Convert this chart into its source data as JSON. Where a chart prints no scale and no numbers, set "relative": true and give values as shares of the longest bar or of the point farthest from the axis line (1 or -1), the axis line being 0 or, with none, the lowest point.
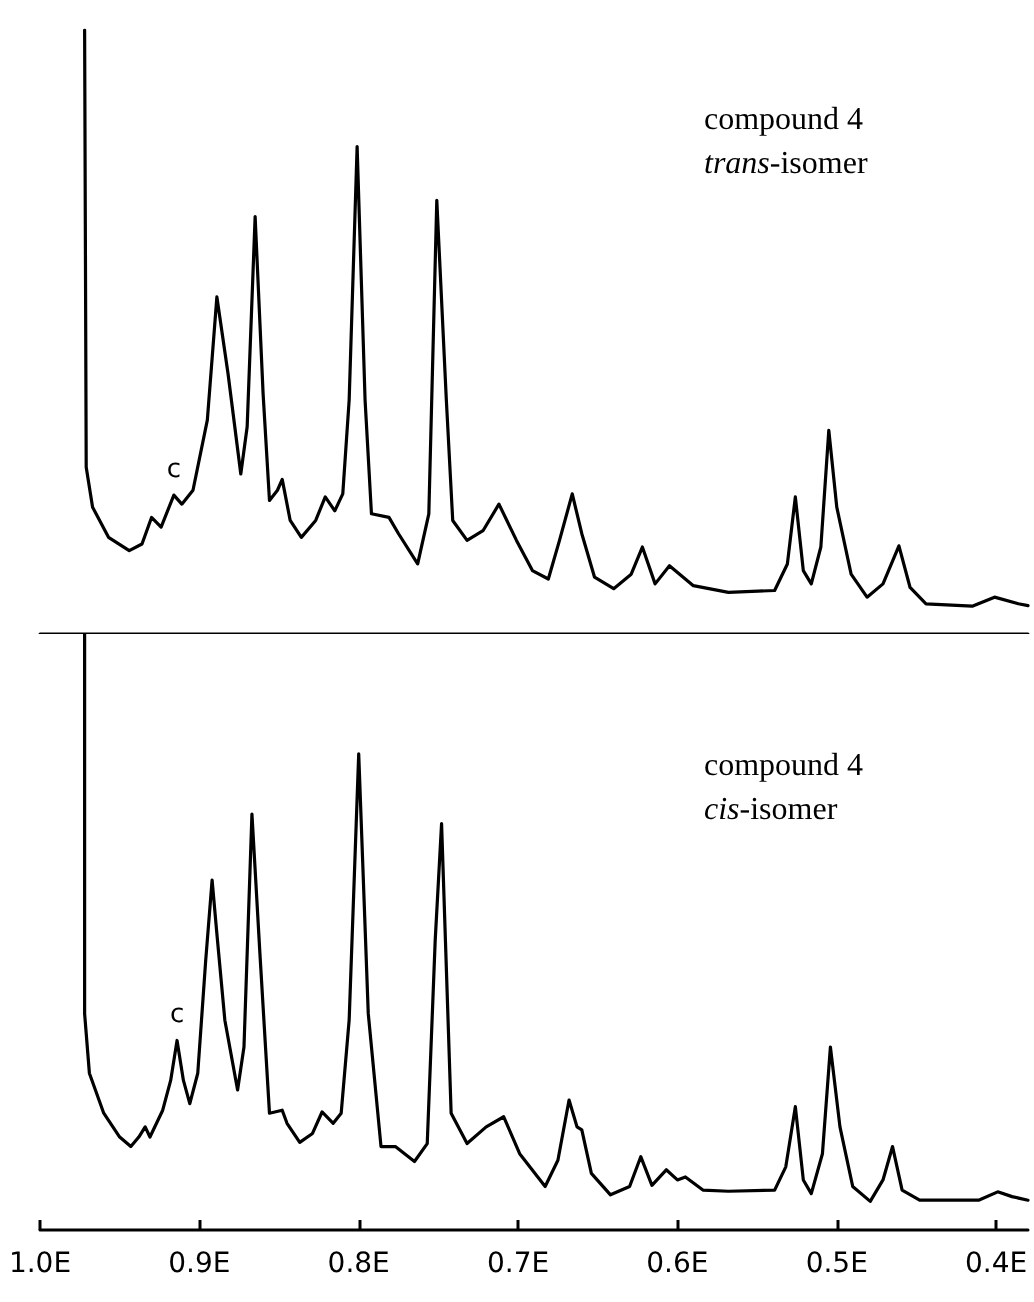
{
  "chart_data": [
    {
      "type": "line",
      "relative": true,
      "xlim": [
        1.0,
        0.38
      ],
      "xticks": [
        {
          "value": 1.0,
          "label": null
        },
        {
          "value": 0.9,
          "label": null
        },
        {
          "value": 0.8,
          "label": null
        },
        {
          "value": 0.7,
          "label": null
        },
        {
          "value": 0.6,
          "label": null
        },
        {
          "value": 0.5,
          "label": null
        },
        {
          "value": 0.4,
          "label": null
        }
      ],
      "tick_labels": false,
      "grid": false,
      "marker": "none",
      "line_style": "solid",
      "annotations": [
        "compound 4",
        "trans-isomer",
        {
          "text": "c",
          "x": 0.916,
          "y": 0.23
        }
      ],
      "series": [
        {
          "color": "#000000",
          "x": [
            0.972,
            0.971,
            0.967,
            0.957,
            0.944,
            0.936,
            0.93,
            0.924,
            0.916,
            0.911,
            0.904,
            0.895,
            0.889,
            0.882,
            0.874,
            0.87,
            0.865,
            0.86,
            0.856,
            0.851,
            0.848,
            0.843,
            0.836,
            0.827,
            0.821,
            0.815,
            0.81,
            0.806,
            0.801,
            0.796,
            0.792,
            0.781,
            0.775,
            0.763,
            0.756,
            0.751,
            0.745,
            0.741,
            0.732,
            0.722,
            0.712,
            0.701,
            0.691,
            0.681,
            0.674,
            0.666,
            0.66,
            0.652,
            0.64,
            0.629,
            0.622,
            0.614,
            0.605,
            0.59,
            0.568,
            0.539,
            0.531,
            0.526,
            0.521,
            0.516,
            0.51,
            0.505,
            0.5,
            0.491,
            0.481,
            0.471,
            0.461,
            0.454,
            0.444,
            0.415,
            0.401,
            0.386,
            0.38
          ],
          "values": [
            1.0,
            0.276,
            0.21,
            0.16,
            0.138,
            0.149,
            0.193,
            0.177,
            0.23,
            0.215,
            0.238,
            0.354,
            0.558,
            0.431,
            0.265,
            0.343,
            0.691,
            0.398,
            0.221,
            0.238,
            0.256,
            0.188,
            0.16,
            0.188,
            0.227,
            0.204,
            0.232,
            0.387,
            0.807,
            0.387,
            0.199,
            0.193,
            0.166,
            0.116,
            0.199,
            0.718,
            0.387,
            0.188,
            0.155,
            0.171,
            0.215,
            0.155,
            0.105,
            0.091,
            0.155,
            0.232,
            0.166,
            0.094,
            0.075,
            0.099,
            0.144,
            0.083,
            0.113,
            0.08,
            0.069,
            0.072,
            0.116,
            0.227,
            0.105,
            0.083,
            0.144,
            0.337,
            0.21,
            0.099,
            0.061,
            0.083,
            0.146,
            0.077,
            0.05,
            0.046,
            0.061,
            0.05,
            0.047
          ]
        }
      ]
    },
    {
      "type": "line",
      "relative": true,
      "xlim": [
        1.0,
        0.38
      ],
      "xticks": [
        {
          "value": 1.0,
          "label": "1.0E"
        },
        {
          "value": 0.9,
          "label": "0.9E"
        },
        {
          "value": 0.8,
          "label": "0.8E"
        },
        {
          "value": 0.7,
          "label": "0.7E"
        },
        {
          "value": 0.6,
          "label": "0.6E"
        },
        {
          "value": 0.5,
          "label": "0.5E"
        },
        {
          "value": 0.4,
          "label": "0.4E"
        }
      ],
      "tick_labels": "x",
      "grid": false,
      "marker": "none",
      "line_style": "solid",
      "annotations": [
        "compound 4",
        "cis-isomer",
        {
          "text": "c",
          "x": 0.914,
          "y": 0.318
        }
      ],
      "series": [
        {
          "color": "#000000",
          "x": [
            0.972,
            0.972,
            0.969,
            0.96,
            0.95,
            0.943,
            0.938,
            0.934,
            0.931,
            0.923,
            0.918,
            0.914,
            0.91,
            0.906,
            0.901,
            0.896,
            0.892,
            0.889,
            0.884,
            0.876,
            0.872,
            0.867,
            0.862,
            0.856,
            0.848,
            0.845,
            0.837,
            0.829,
            0.823,
            0.816,
            0.811,
            0.806,
            0.8,
            0.794,
            0.786,
            0.777,
            0.765,
            0.757,
            0.752,
            0.748,
            0.742,
            0.732,
            0.72,
            0.709,
            0.699,
            0.683,
            0.675,
            0.668,
            0.663,
            0.66,
            0.654,
            0.642,
            0.63,
            0.623,
            0.616,
            0.607,
            0.6,
            0.595,
            0.584,
            0.568,
            0.539,
            0.532,
            0.526,
            0.521,
            0.516,
            0.509,
            0.504,
            0.498,
            0.49,
            0.479,
            0.471,
            0.465,
            0.459,
            0.448,
            0.411,
            0.399,
            0.39,
            0.38
          ],
          "values": [
            1.0,
            0.363,
            0.263,
            0.196,
            0.156,
            0.14,
            0.156,
            0.173,
            0.156,
            0.201,
            0.251,
            0.318,
            0.251,
            0.212,
            0.263,
            0.453,
            0.587,
            0.497,
            0.352,
            0.235,
            0.307,
            0.698,
            0.464,
            0.196,
            0.201,
            0.179,
            0.147,
            0.162,
            0.198,
            0.179,
            0.196,
            0.352,
            0.799,
            0.363,
            0.14,
            0.14,
            0.115,
            0.145,
            0.486,
            0.682,
            0.196,
            0.145,
            0.173,
            0.19,
            0.128,
            0.073,
            0.117,
            0.218,
            0.173,
            0.168,
            0.095,
            0.059,
            0.073,
            0.123,
            0.075,
            0.101,
            0.084,
            0.089,
            0.067,
            0.065,
            0.067,
            0.106,
            0.207,
            0.084,
            0.061,
            0.128,
            0.307,
            0.173,
            0.073,
            0.048,
            0.084,
            0.14,
            0.067,
            0.05,
            0.05,
            0.064,
            0.056,
            0.05
          ]
        }
      ]
    }
  ]
}
